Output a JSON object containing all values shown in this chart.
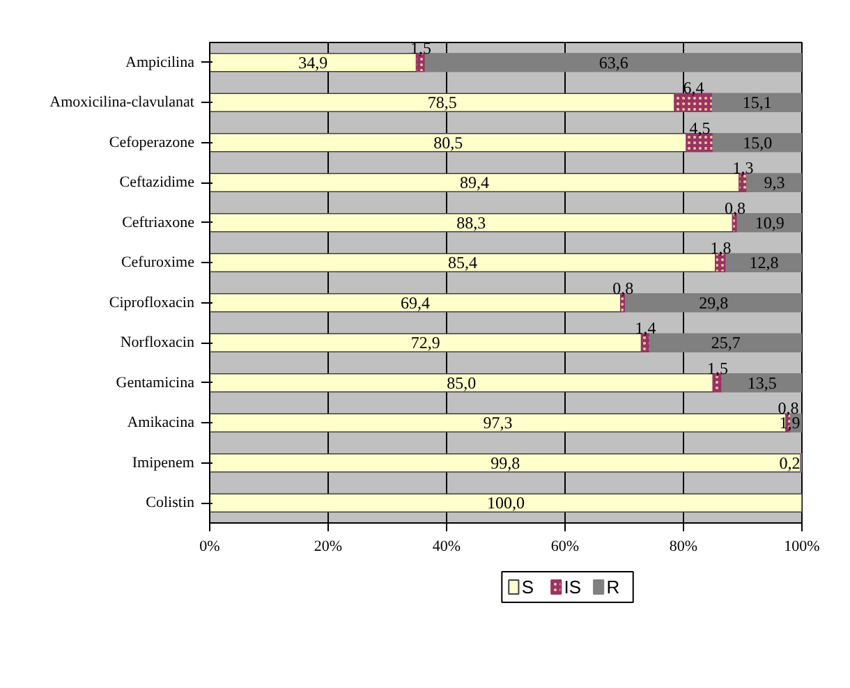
{
  "chart_data": {
    "type": "bar",
    "orientation": "horizontal",
    "stacked": true,
    "categories": [
      "Ampicilina",
      "Amoxicilina-clavulanat",
      "Cefoperazone",
      "Ceftazidime",
      "Ceftriaxone",
      "Cefuroxime",
      "Ciprofloxacin",
      "Norfloxacin",
      "Gentamicina",
      "Amikacina",
      "Imipenem",
      "Colistin"
    ],
    "series": [
      {
        "name": "S",
        "color": "#ffffcc",
        "values": [
          34.9,
          78.5,
          80.5,
          89.4,
          88.3,
          85.4,
          69.4,
          72.9,
          85.0,
          97.3,
          99.8,
          100.0
        ],
        "value_labels": [
          "34,9",
          "78,5",
          "80,5",
          "89,4",
          "88,3",
          "85,4",
          "69,4",
          "72,9",
          "85,0",
          "97,3",
          "99,8",
          "100,0"
        ]
      },
      {
        "name": "IS",
        "color": "#993366",
        "values": [
          1.5,
          6.4,
          4.5,
          1.3,
          0.8,
          1.8,
          0.8,
          1.4,
          1.5,
          0.8,
          0,
          0
        ],
        "value_labels": [
          "1,5",
          "6,4",
          "4,5",
          "1,3",
          "0,8",
          "1,8",
          "0,8",
          "1,4",
          "1,5",
          "0,8",
          null,
          null
        ]
      },
      {
        "name": "R",
        "color": "#808080",
        "values": [
          63.6,
          15.1,
          15.0,
          9.3,
          10.9,
          12.8,
          29.8,
          25.7,
          13.5,
          1.9,
          0.2,
          0
        ],
        "value_labels": [
          "63,6",
          "15,1",
          "15,0",
          "9,3",
          "10,9",
          "12,8",
          "29,8",
          "25,7",
          "13,5",
          "1,9",
          "0,2",
          null
        ]
      }
    ],
    "xlim": [
      0,
      100
    ],
    "xticks": [
      {
        "value": 0,
        "label": "0%"
      },
      {
        "value": 20,
        "label": "20%"
      },
      {
        "value": 40,
        "label": "40%"
      },
      {
        "value": 60,
        "label": "60%"
      },
      {
        "value": 80,
        "label": "80%"
      },
      {
        "value": 100,
        "label": "100%"
      }
    ],
    "grid": "x",
    "legend": "bottom"
  }
}
